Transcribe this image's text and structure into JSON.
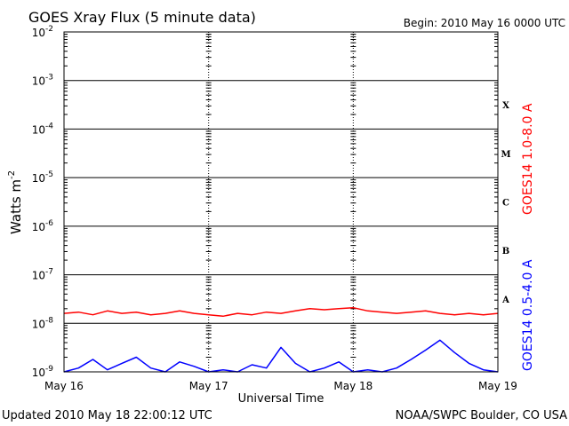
{
  "chart_data": {
    "type": "line",
    "title": "GOES Xray Flux (5 minute data)",
    "begin_label": "Begin:  2010 May 16 0000 UTC",
    "xlabel": "Universal Time",
    "ylabel": "Watts m",
    "ylabel_sup": "-2",
    "x_ticks": [
      "May 16",
      "May 17",
      "May 18",
      "May 19"
    ],
    "xlim": [
      0,
      3
    ],
    "y_scale": "log",
    "ylim": [
      1e-09,
      0.01
    ],
    "y_ticks": [
      {
        "value": 0.01,
        "base": "10",
        "exp": "-2"
      },
      {
        "value": 0.001,
        "base": "10",
        "exp": "-3"
      },
      {
        "value": 0.0001,
        "base": "10",
        "exp": "-4"
      },
      {
        "value": 1e-05,
        "base": "10",
        "exp": "-5"
      },
      {
        "value": 1e-06,
        "base": "10",
        "exp": "-6"
      },
      {
        "value": 1e-07,
        "base": "10",
        "exp": "-7"
      },
      {
        "value": 1e-08,
        "base": "10",
        "exp": "-8"
      },
      {
        "value": 1e-09,
        "base": "10",
        "exp": "-9"
      }
    ],
    "flare_classes": [
      {
        "label": "X",
        "value": 0.000316
      },
      {
        "label": "M",
        "value": 3.16e-05
      },
      {
        "label": "C",
        "value": 3.16e-06
      },
      {
        "label": "B",
        "value": 3.16e-07
      },
      {
        "label": "A",
        "value": 3.16e-08
      }
    ],
    "grid": true,
    "series": [
      {
        "name": "GOES14 1.0-8.0 A",
        "color": "#ff0000",
        "x": [
          0.0,
          0.1,
          0.2,
          0.3,
          0.4,
          0.5,
          0.6,
          0.7,
          0.8,
          0.9,
          1.0,
          1.1,
          1.2,
          1.3,
          1.4,
          1.5,
          1.6,
          1.7,
          1.8,
          1.9,
          2.0,
          2.1,
          2.2,
          2.3,
          2.4,
          2.5,
          2.6,
          2.7,
          2.8,
          2.9,
          3.0
        ],
        "values": [
          1.6e-08,
          1.7e-08,
          1.5e-08,
          1.8e-08,
          1.6e-08,
          1.7e-08,
          1.5e-08,
          1.6e-08,
          1.8e-08,
          1.6e-08,
          1.5e-08,
          1.4e-08,
          1.6e-08,
          1.5e-08,
          1.7e-08,
          1.6e-08,
          1.8e-08,
          2e-08,
          1.9e-08,
          2e-08,
          2.1e-08,
          1.8e-08,
          1.7e-08,
          1.6e-08,
          1.7e-08,
          1.8e-08,
          1.6e-08,
          1.5e-08,
          1.6e-08,
          1.5e-08,
          1.6e-08
        ]
      },
      {
        "name": "GOES14 0.5-4.0 A",
        "color": "#0000ff",
        "x": [
          0.0,
          0.1,
          0.2,
          0.3,
          0.4,
          0.5,
          0.6,
          0.7,
          0.8,
          0.9,
          1.0,
          1.1,
          1.2,
          1.3,
          1.4,
          1.5,
          1.6,
          1.7,
          1.8,
          1.9,
          2.0,
          2.1,
          2.2,
          2.3,
          2.4,
          2.5,
          2.6,
          2.7,
          2.8,
          2.9,
          3.0
        ],
        "values": [
          1e-09,
          1.2e-09,
          1.8e-09,
          1.1e-09,
          1.5e-09,
          2e-09,
          1.2e-09,
          1e-09,
          1.6e-09,
          1.3e-09,
          1e-09,
          1.1e-09,
          1e-09,
          1.4e-09,
          1.2e-09,
          3.2e-09,
          1.5e-09,
          1e-09,
          1.2e-09,
          1.6e-09,
          1e-09,
          1.1e-09,
          1e-09,
          1.2e-09,
          1.8e-09,
          2.8e-09,
          4.5e-09,
          2.5e-09,
          1.5e-09,
          1.1e-09,
          1e-09
        ]
      }
    ]
  },
  "footer": {
    "updated": "Updated 2010 May 18 22:00:12 UTC",
    "source": "NOAA/SWPC Boulder, CO USA"
  }
}
